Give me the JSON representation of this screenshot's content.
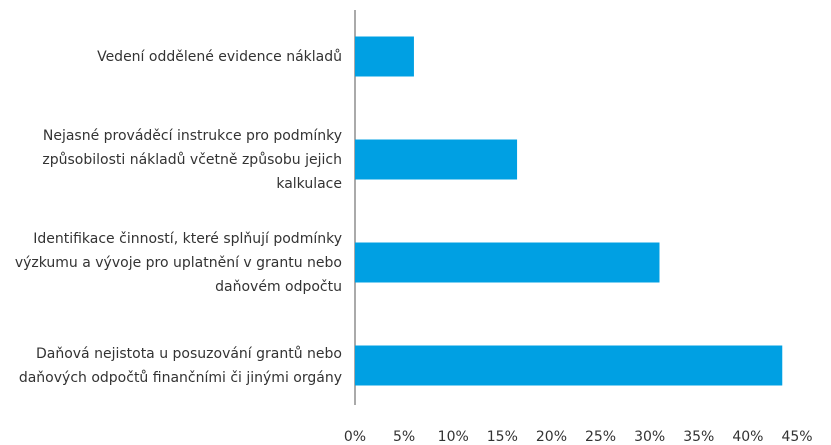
{
  "chart_data": {
    "type": "barh",
    "categories": [
      "Vedení oddělené evidence nákladů",
      "Nejasné prováděcí instrukce pro podmínky způsobilosti nákladů včetně způsobu jejich kalkulace",
      "Identifikace činností, které splňují podmínky výzkumu a vývoje pro uplatnění v grantu nebo daňovém odpočtu",
      "Daňová nejistota u posuzování grantů nebo daňových odpočtů finančními či jinými orgány"
    ],
    "values": [
      6,
      16.5,
      31,
      43.5
    ],
    "color": "#00a0e3",
    "xlim": [
      0,
      45
    ],
    "xticks": [
      {
        "value": 0,
        "label": "0%"
      },
      {
        "value": 5,
        "label": "5%"
      },
      {
        "value": 10,
        "label": "10%"
      },
      {
        "value": 15,
        "label": "15%"
      },
      {
        "value": 20,
        "label": "20%"
      },
      {
        "value": 25,
        "label": "25%"
      },
      {
        "value": 30,
        "label": "30%"
      },
      {
        "value": 35,
        "label": "35%"
      },
      {
        "value": 40,
        "label": "40%"
      },
      {
        "value": 45,
        "label": "45%"
      }
    ],
    "grid": false
  }
}
